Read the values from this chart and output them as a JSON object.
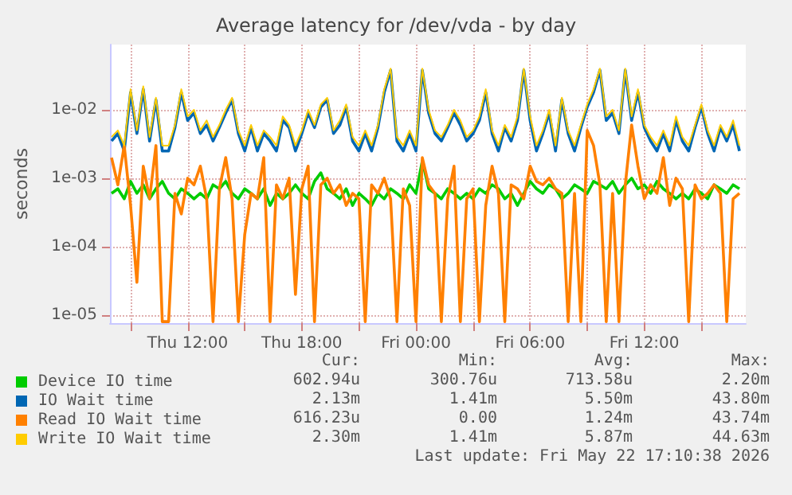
{
  "chart_data": {
    "type": "line",
    "title": "Average latency for /dev/vda - by day",
    "ylabel": "seconds",
    "log": true,
    "grid": true,
    "legend": "bottom",
    "marker": "none",
    "line_style": "solid",
    "xlim": [
      "2026-05-21T07:55",
      "2026-05-22T17:20"
    ],
    "xticks": [
      {
        "value": "2026-05-21T09:00",
        "label": null
      },
      {
        "value": "2026-05-21T12:00",
        "label": "Thu 12:00"
      },
      {
        "value": "2026-05-21T15:00",
        "label": null
      },
      {
        "value": "2026-05-21T18:00",
        "label": "Thu 18:00"
      },
      {
        "value": "2026-05-21T21:00",
        "label": null
      },
      {
        "value": "2026-05-22T00:00",
        "label": "Fri 00:00"
      },
      {
        "value": "2026-05-22T03:00",
        "label": null
      },
      {
        "value": "2026-05-22T06:00",
        "label": "Fri 06:00"
      },
      {
        "value": "2026-05-22T09:00",
        "label": null
      },
      {
        "value": "2026-05-22T12:00",
        "label": "Fri 12:00"
      },
      {
        "value": "2026-05-22T15:00",
        "label": null
      }
    ],
    "ylim": [
      7.6e-06,
      0.09
    ],
    "yticks": [
      {
        "value": 1e-05,
        "label": "1e-05"
      },
      {
        "value": 0.0001,
        "label": "1e-04"
      },
      {
        "value": 0.001,
        "label": "1e-03"
      },
      {
        "value": 0.01,
        "label": "1e-02"
      }
    ],
    "x": [
      "2026-05-21T08:00",
      "2026-05-21T08:20",
      "2026-05-21T08:40",
      "2026-05-21T09:00",
      "2026-05-21T09:20",
      "2026-05-21T09:40",
      "2026-05-21T10:00",
      "2026-05-21T10:20",
      "2026-05-21T10:40",
      "2026-05-21T11:00",
      "2026-05-21T11:20",
      "2026-05-21T11:40",
      "2026-05-21T12:00",
      "2026-05-21T12:20",
      "2026-05-21T12:40",
      "2026-05-21T13:00",
      "2026-05-21T13:20",
      "2026-05-21T13:40",
      "2026-05-21T14:00",
      "2026-05-21T14:20",
      "2026-05-21T14:40",
      "2026-05-21T15:00",
      "2026-05-21T15:20",
      "2026-05-21T15:40",
      "2026-05-21T16:00",
      "2026-05-21T16:20",
      "2026-05-21T16:40",
      "2026-05-21T17:00",
      "2026-05-21T17:20",
      "2026-05-21T17:40",
      "2026-05-21T18:00",
      "2026-05-21T18:20",
      "2026-05-21T18:40",
      "2026-05-21T19:00",
      "2026-05-21T19:20",
      "2026-05-21T19:40",
      "2026-05-21T20:00",
      "2026-05-21T20:20",
      "2026-05-21T20:40",
      "2026-05-21T21:00",
      "2026-05-21T21:20",
      "2026-05-21T21:40",
      "2026-05-21T22:00",
      "2026-05-21T22:20",
      "2026-05-21T22:40",
      "2026-05-21T23:00",
      "2026-05-21T23:20",
      "2026-05-21T23:40",
      "2026-05-22T00:00",
      "2026-05-22T00:20",
      "2026-05-22T00:40",
      "2026-05-22T01:00",
      "2026-05-22T01:20",
      "2026-05-22T01:40",
      "2026-05-22T02:00",
      "2026-05-22T02:20",
      "2026-05-22T02:40",
      "2026-05-22T03:00",
      "2026-05-22T03:20",
      "2026-05-22T03:40",
      "2026-05-22T04:00",
      "2026-05-22T04:20",
      "2026-05-22T04:40",
      "2026-05-22T05:00",
      "2026-05-22T05:20",
      "2026-05-22T05:40",
      "2026-05-22T06:00",
      "2026-05-22T06:20",
      "2026-05-22T06:40",
      "2026-05-22T07:00",
      "2026-05-22T07:20",
      "2026-05-22T07:40",
      "2026-05-22T08:00",
      "2026-05-22T08:20",
      "2026-05-22T08:40",
      "2026-05-22T09:00",
      "2026-05-22T09:20",
      "2026-05-22T09:40",
      "2026-05-22T10:00",
      "2026-05-22T10:20",
      "2026-05-22T10:40",
      "2026-05-22T11:00",
      "2026-05-22T11:20",
      "2026-05-22T11:40",
      "2026-05-22T12:00",
      "2026-05-22T12:20",
      "2026-05-22T12:40",
      "2026-05-22T13:00",
      "2026-05-22T13:20",
      "2026-05-22T13:40",
      "2026-05-22T14:00",
      "2026-05-22T14:20",
      "2026-05-22T14:40",
      "2026-05-22T15:00",
      "2026-05-22T15:20",
      "2026-05-22T15:40",
      "2026-05-22T16:00",
      "2026-05-22T16:20",
      "2026-05-22T16:40",
      "2026-05-22T17:00"
    ],
    "series": [
      {
        "name": "Device IO time",
        "color": "#00cc00",
        "values": [
          0.0006,
          0.0007,
          0.0005,
          0.0009,
          0.0006,
          0.0008,
          0.0005,
          0.0007,
          0.0009,
          0.0006,
          0.0005,
          0.0007,
          0.0006,
          0.0005,
          0.0006,
          0.0005,
          0.0008,
          0.0007,
          0.0009,
          0.0006,
          0.0005,
          0.0007,
          0.0006,
          0.0005,
          0.0007,
          0.0004,
          0.0006,
          0.0005,
          0.0006,
          0.0008,
          0.0006,
          0.0005,
          0.0009,
          0.0012,
          0.0007,
          0.0006,
          0.0005,
          0.0007,
          0.0004,
          0.0006,
          0.0005,
          0.0004,
          0.0006,
          0.0005,
          0.0007,
          0.0006,
          0.0005,
          0.0008,
          0.0006,
          0.0018,
          0.0007,
          0.0006,
          0.0005,
          0.0007,
          0.0006,
          0.0005,
          0.0006,
          0.0005,
          0.0007,
          0.0006,
          0.0008,
          0.0007,
          0.0005,
          0.0006,
          0.0004,
          0.0006,
          0.0009,
          0.0007,
          0.0006,
          0.0008,
          0.0007,
          0.0005,
          0.0006,
          0.0008,
          0.0007,
          0.0006,
          0.0009,
          0.0008,
          0.0007,
          0.0009,
          0.0006,
          0.0008,
          0.001,
          0.0007,
          0.0008,
          0.0006,
          0.0009,
          0.0007,
          0.0006,
          0.0005,
          0.0006,
          0.0005,
          0.0007,
          0.0006,
          0.0005,
          0.0008,
          0.0007,
          0.0006,
          0.0008,
          0.0007
        ]
      },
      {
        "name": "IO Wait time",
        "color": "#0066b3",
        "values": [
          0.0035,
          0.0045,
          0.0025,
          0.018,
          0.0045,
          0.02,
          0.0035,
          0.014,
          0.0025,
          0.0025,
          0.0055,
          0.018,
          0.007,
          0.009,
          0.0045,
          0.006,
          0.0035,
          0.0055,
          0.009,
          0.014,
          0.0045,
          0.0025,
          0.0055,
          0.0025,
          0.0045,
          0.0035,
          0.0025,
          0.007,
          0.0055,
          0.0025,
          0.0045,
          0.009,
          0.0055,
          0.011,
          0.014,
          0.0045,
          0.006,
          0.011,
          0.0035,
          0.0025,
          0.0045,
          0.0025,
          0.0055,
          0.018,
          0.038,
          0.0035,
          0.0025,
          0.0045,
          0.0025,
          0.038,
          0.009,
          0.0045,
          0.0035,
          0.0055,
          0.009,
          0.006,
          0.0035,
          0.0045,
          0.007,
          0.018,
          0.0045,
          0.0025,
          0.0055,
          0.0035,
          0.007,
          0.038,
          0.007,
          0.0025,
          0.0045,
          0.009,
          0.0025,
          0.014,
          0.0045,
          0.0025,
          0.0055,
          0.011,
          0.018,
          0.038,
          0.007,
          0.009,
          0.0045,
          0.038,
          0.007,
          0.018,
          0.0055,
          0.0035,
          0.0025,
          0.0045,
          0.0025,
          0.007,
          0.0035,
          0.0025,
          0.0055,
          0.011,
          0.0045,
          0.0025,
          0.0055,
          0.0035,
          0.006,
          0.0025
        ]
      },
      {
        "name": "Read IO Wait time",
        "color": "#ff8000",
        "values": [
          0.002,
          0.0008,
          0.003,
          0.0004,
          3e-05,
          0.0015,
          0.0005,
          0.003,
          8e-06,
          8e-06,
          0.0006,
          0.0003,
          0.001,
          0.0008,
          0.0015,
          0.0005,
          8e-06,
          0.0007,
          0.002,
          0.0005,
          8e-06,
          0.00015,
          0.0006,
          0.0005,
          0.002,
          8e-06,
          0.0008,
          0.0005,
          0.001,
          2e-05,
          0.0007,
          0.0015,
          8e-06,
          0.0008,
          0.001,
          0.0006,
          0.0008,
          0.0004,
          0.0006,
          0.0005,
          8e-06,
          0.0008,
          0.0006,
          0.001,
          0.0005,
          8e-06,
          0.0007,
          0.0004,
          8e-06,
          0.002,
          0.0008,
          0.0006,
          8e-06,
          0.0005,
          0.0015,
          8e-06,
          0.0005,
          0.0007,
          8e-06,
          0.0004,
          0.0015,
          0.0006,
          8e-06,
          0.0008,
          0.0007,
          0.0005,
          0.0015,
          0.0009,
          0.0008,
          0.001,
          0.0007,
          0.0006,
          8e-06,
          0.0006,
          8e-06,
          0.005,
          0.003,
          0.0008,
          8e-06,
          0.0006,
          8e-06,
          0.0008,
          0.006,
          0.0015,
          0.0005,
          0.0008,
          0.0006,
          0.002,
          0.0004,
          0.001,
          0.0007,
          8e-06,
          0.0008,
          0.0005,
          0.0006,
          0.0008,
          0.0006,
          8e-06,
          0.0005,
          0.0006
        ]
      },
      {
        "name": "Write IO Wait time",
        "color": "#ffcc00",
        "values": [
          0.004,
          0.005,
          0.003,
          0.02,
          0.005,
          0.022,
          0.004,
          0.015,
          0.003,
          0.003,
          0.006,
          0.02,
          0.008,
          0.01,
          0.005,
          0.007,
          0.004,
          0.006,
          0.01,
          0.015,
          0.005,
          0.003,
          0.006,
          0.003,
          0.005,
          0.004,
          0.003,
          0.008,
          0.006,
          0.003,
          0.005,
          0.01,
          0.006,
          0.012,
          0.015,
          0.005,
          0.007,
          0.012,
          0.004,
          0.003,
          0.005,
          0.003,
          0.006,
          0.02,
          0.04,
          0.004,
          0.003,
          0.005,
          0.003,
          0.04,
          0.01,
          0.005,
          0.004,
          0.006,
          0.01,
          0.007,
          0.004,
          0.005,
          0.008,
          0.02,
          0.005,
          0.003,
          0.006,
          0.004,
          0.008,
          0.04,
          0.008,
          0.003,
          0.005,
          0.01,
          0.003,
          0.015,
          0.005,
          0.003,
          0.006,
          0.012,
          0.02,
          0.04,
          0.008,
          0.01,
          0.005,
          0.04,
          0.008,
          0.02,
          0.006,
          0.004,
          0.003,
          0.005,
          0.003,
          0.008,
          0.004,
          0.003,
          0.006,
          0.012,
          0.005,
          0.003,
          0.006,
          0.004,
          0.007,
          0.003
        ]
      }
    ],
    "annotations": [
      "Cur:",
      "Min:",
      "Avg:",
      "Max:",
      "602.94u",
      "300.76u",
      "713.58u",
      "2.20m",
      "2.13m",
      "1.41m",
      "5.50m",
      "43.80m",
      "616.23u",
      "0.00",
      "1.24m",
      "43.74m",
      "2.30m",
      "1.41m",
      "5.87m",
      "44.63m",
      "Last update: Fri May 22 17:10:38 2026"
    ]
  }
}
